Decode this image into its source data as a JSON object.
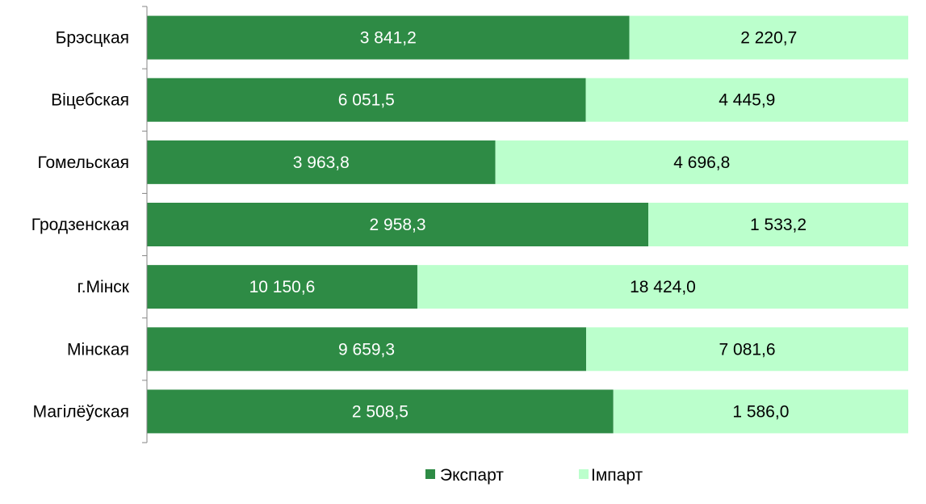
{
  "chart_data": {
    "type": "bar",
    "orientation": "horizontal",
    "stacking": "percent",
    "categories": [
      "Брэсцкая",
      "Віцебская",
      "Гомельская",
      "Гродзенская",
      "г.Мінск",
      "Мінская",
      "Магілёўская"
    ],
    "series": [
      {
        "name": "Экспарт",
        "color": "#2e8b45",
        "values": [
          3841.2,
          6051.5,
          3963.8,
          2958.3,
          10150.6,
          9659.3,
          2508.5
        ],
        "labels": [
          "3 841,2",
          "6 051,5",
          "3 963,8",
          "2 958,3",
          "10 150,6",
          "9 659,3",
          "2 508,5"
        ]
      },
      {
        "name": "Імпарт",
        "color": "#bbffcc",
        "values": [
          2220.7,
          4445.9,
          4696.8,
          1533.2,
          18424.0,
          7081.6,
          1586.0
        ],
        "labels": [
          "2 220,7",
          "4 445,9",
          "4 696,8",
          "1 533,2",
          "18 424,0",
          "7 081,6",
          "1 586,0"
        ]
      }
    ],
    "title": "",
    "xlabel": "",
    "ylabel": "",
    "grid": false,
    "legend_position": "bottom"
  }
}
